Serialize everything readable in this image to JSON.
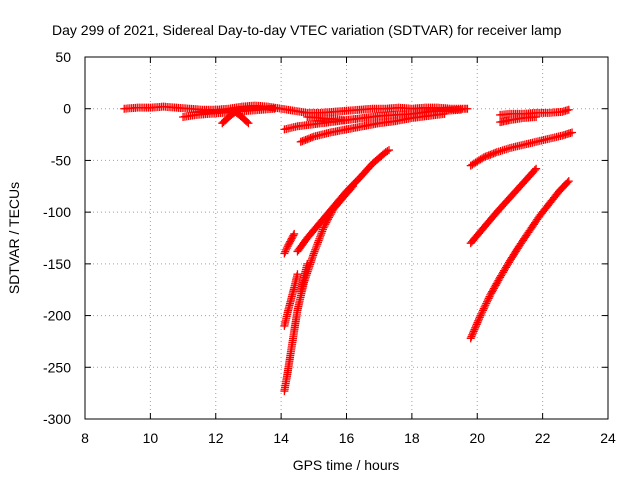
{
  "chart_data": {
    "type": "scatter",
    "title": "Day 299 of 2021, Sidereal Day-to-day VTEC variation (SDTVAR) for receiver lamp",
    "xlabel": "GPS time / hours",
    "ylabel": "SDTVAR / TECUs",
    "xlim": [
      8,
      24
    ],
    "ylim": [
      -300,
      50
    ],
    "xticks": [
      8,
      10,
      12,
      14,
      16,
      18,
      20,
      22,
      24
    ],
    "yticks": [
      50,
      0,
      -50,
      -100,
      -150,
      -200,
      -250,
      -300
    ],
    "grid": true,
    "marker": "plus",
    "color": "#ff0000",
    "series": [
      {
        "x": [
          9.2,
          9.6,
          10.0,
          10.4,
          10.8,
          11.2,
          11.6,
          12.0,
          12.4,
          12.8,
          13.2,
          13.6,
          14.0,
          14.4,
          14.8,
          15.2,
          15.6,
          16.0,
          16.4,
          16.8,
          17.2,
          17.6,
          18.0,
          18.4,
          18.8,
          19.2,
          19.6,
          19.7
        ],
        "y": [
          0,
          1,
          1,
          2,
          1,
          0,
          -1,
          -1,
          0,
          2,
          3,
          2,
          0,
          -2,
          -4,
          -4,
          -3,
          -2,
          -1,
          0,
          0,
          1,
          0,
          1,
          1,
          0,
          0,
          0
        ]
      },
      {
        "x": [
          11.0,
          11.4,
          11.8,
          12.2,
          12.6,
          13.0,
          13.4,
          13.8
        ],
        "y": [
          -8,
          -6,
          -5,
          -4,
          -3,
          -2,
          -1,
          0
        ]
      },
      {
        "x": [
          12.2,
          12.4,
          12.6,
          12.8,
          13.0
        ],
        "y": [
          -14,
          -8,
          -3,
          -8,
          -14
        ]
      },
      {
        "x": [
          14.1,
          14.5,
          15.0,
          15.5,
          16.0,
          16.5,
          17.0,
          17.5,
          18.0,
          18.5,
          19.0,
          19.5
        ],
        "y": [
          -20,
          -17,
          -15,
          -13,
          -11,
          -9,
          -7,
          -6,
          -5,
          -3,
          -2,
          -1
        ]
      },
      {
        "x": [
          14.6,
          15.0,
          15.5,
          16.0,
          16.5,
          17.0,
          17.5,
          18.0,
          18.5,
          19.0
        ],
        "y": [
          -32,
          -27,
          -23,
          -20,
          -17,
          -14,
          -12,
          -9,
          -7,
          -5
        ]
      },
      {
        "x": [
          14.8,
          15.2,
          15.6,
          15.9
        ],
        "y": [
          -8,
          -9,
          -10,
          -11
        ]
      },
      {
        "x": [
          14.1,
          14.2,
          14.3,
          14.4
        ],
        "y": [
          -140,
          -133,
          -127,
          -121
        ]
      },
      {
        "x": [
          14.1,
          14.2,
          14.3,
          14.4,
          14.5
        ],
        "y": [
          -210,
          -197,
          -185,
          -173,
          -160
        ]
      },
      {
        "x": [
          14.6,
          14.7,
          14.8
        ],
        "y": [
          -177,
          -163,
          -150
        ]
      },
      {
        "x": [
          14.1,
          14.2,
          14.3,
          14.4,
          14.5,
          14.7,
          15.0,
          15.3,
          15.6,
          16.0,
          16.2
        ],
        "y": [
          -273,
          -255,
          -235,
          -215,
          -195,
          -168,
          -140,
          -115,
          -97,
          -82,
          -75
        ]
      },
      {
        "x": [
          14.5,
          14.8,
          15.2,
          15.6,
          16.0,
          16.4,
          16.8,
          17.2,
          17.3
        ],
        "y": [
          -138,
          -125,
          -110,
          -95,
          -80,
          -67,
          -53,
          -42,
          -40
        ]
      },
      {
        "x": [
          19.8,
          20.2,
          20.6,
          21.0,
          21.4,
          21.8,
          22.2,
          22.6,
          22.9
        ],
        "y": [
          -55,
          -47,
          -42,
          -38,
          -35,
          -32,
          -29,
          -26,
          -23
        ]
      },
      {
        "x": [
          19.8,
          20.2,
          20.6,
          21.0,
          21.4,
          21.8
        ],
        "y": [
          -130,
          -115,
          -100,
          -86,
          -72,
          -58
        ]
      },
      {
        "x": [
          19.8,
          20.1,
          20.4,
          20.7,
          21.0,
          21.3,
          21.6,
          21.9,
          22.2,
          22.5,
          22.8
        ],
        "y": [
          -222,
          -200,
          -180,
          -163,
          -147,
          -132,
          -118,
          -104,
          -92,
          -80,
          -70
        ]
      },
      {
        "x": [
          20.7,
          21.0,
          21.4,
          21.8,
          22.2,
          22.6,
          22.8
        ],
        "y": [
          -6,
          -5,
          -5,
          -4,
          -4,
          -3,
          -1
        ]
      },
      {
        "x": [
          20.7,
          21.0,
          21.4,
          21.8
        ],
        "y": [
          -13,
          -11,
          -9,
          -8
        ]
      }
    ]
  }
}
